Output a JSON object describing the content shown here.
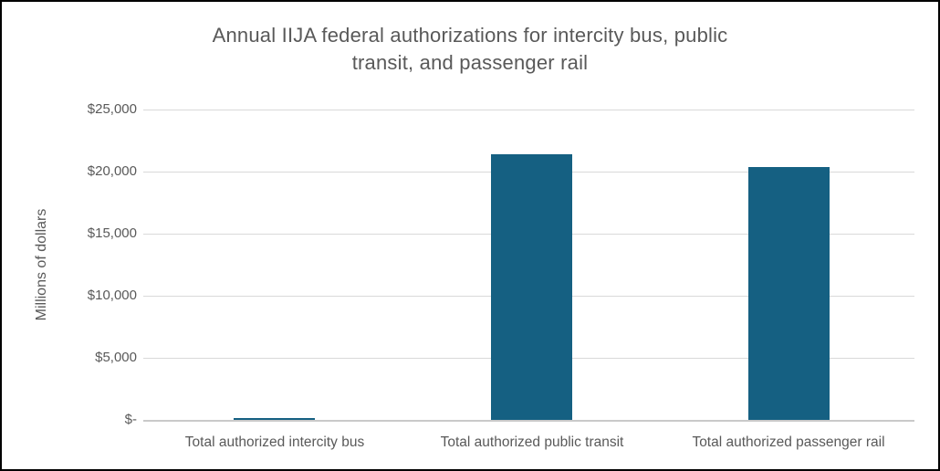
{
  "chart_data": {
    "type": "bar",
    "title": "Annual IIJA federal authorizations for intercity bus, public transit, and passenger rail",
    "title_lines": [
      "Annual IIJA federal authorizations for intercity bus, public",
      "transit, and passenger rail"
    ],
    "xlabel": "",
    "ylabel": "Millions of dollars",
    "categories": [
      "Total authorized intercity bus",
      "Total authorized public transit",
      "Total authorized passenger rail"
    ],
    "values": [
      150,
      21400,
      20400
    ],
    "ylim": [
      0,
      25000
    ],
    "y_tick_step": 5000,
    "y_tick_labels": [
      "$-",
      "$5,000",
      "$10,000",
      "$15,000",
      "$20,000",
      "$25,000"
    ],
    "grid": true,
    "legend_position": "none",
    "bar_color": "#156082",
    "gridline_color": "#d9d9d9",
    "text_color": "#595959",
    "frame_border_color": "#000000",
    "background_color": "#ffffff"
  }
}
